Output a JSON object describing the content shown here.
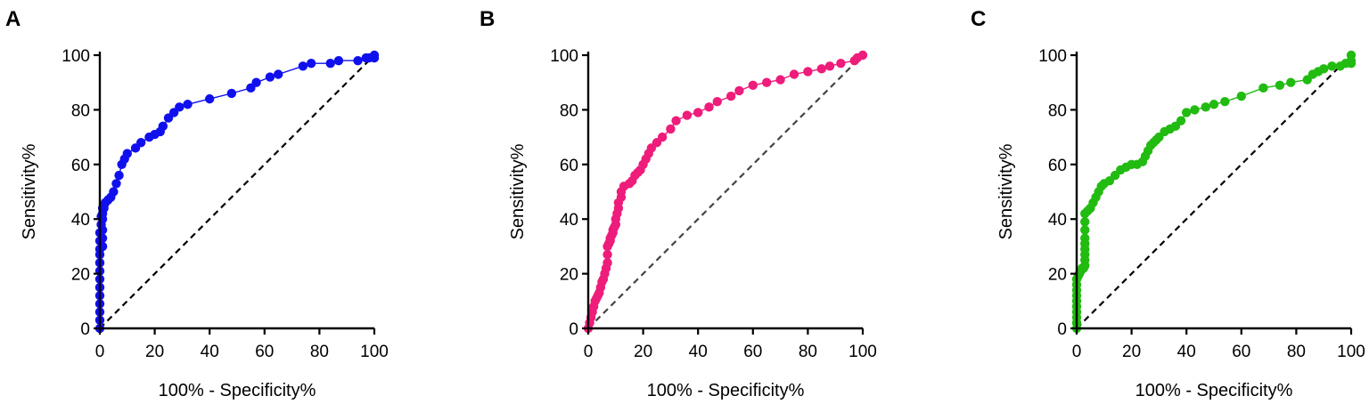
{
  "chart_data": [
    {
      "panel": "A",
      "type": "scatter",
      "xlabel": "100% - Specificity%",
      "ylabel": "Sensitivity%",
      "xlim": [
        0,
        100
      ],
      "ylim": [
        0,
        100
      ],
      "xticks": [
        "0",
        "20",
        "40",
        "60",
        "80",
        "100"
      ],
      "yticks": [
        "0",
        "20",
        "40",
        "60",
        "80",
        "100"
      ],
      "color": "#1010ee",
      "reference_line": [
        [
          0,
          0
        ],
        [
          100,
          100
        ]
      ],
      "x": [
        0,
        0,
        0,
        0,
        0,
        0,
        0,
        0,
        0,
        0,
        0,
        0,
        0,
        0.5,
        0.5,
        1,
        1,
        1,
        1,
        1,
        1,
        1.5,
        1.5,
        2,
        3,
        4,
        5,
        6,
        7,
        8,
        9,
        10,
        13,
        15,
        18,
        20,
        22,
        23,
        25,
        27,
        29,
        32,
        40,
        48,
        55,
        57,
        62,
        65,
        74,
        77,
        84,
        87,
        94,
        97,
        98,
        100,
        100
      ],
      "y": [
        0,
        3,
        6,
        9,
        12,
        15,
        18,
        21,
        24,
        27,
        29,
        32,
        35,
        38,
        41,
        44,
        30,
        33,
        36,
        40,
        42,
        44,
        45,
        46,
        47,
        48,
        50,
        53,
        56,
        60,
        62,
        64,
        66,
        68,
        70,
        71,
        72,
        74,
        77,
        79,
        81,
        82,
        84,
        86,
        88,
        90,
        92,
        93,
        96,
        97,
        97,
        98,
        98,
        99,
        99,
        99,
        100
      ]
    },
    {
      "panel": "B",
      "type": "scatter",
      "xlabel": "100% - Specificity%",
      "ylabel": "Sensitivity%",
      "xlim": [
        0,
        100
      ],
      "ylim": [
        0,
        100
      ],
      "xticks": [
        "0",
        "20",
        "40",
        "60",
        "80",
        "100"
      ],
      "yticks": [
        "0",
        "20",
        "40",
        "60",
        "80",
        "100"
      ],
      "color": "#ee1c7a",
      "reference_line": [
        [
          0,
          0
        ],
        [
          100,
          100
        ]
      ],
      "x": [
        0,
        0.5,
        1,
        1.5,
        2,
        2.5,
        3,
        3.5,
        4,
        4.5,
        5,
        5.5,
        6,
        6.5,
        7,
        7,
        7,
        7.5,
        8,
        8,
        8.5,
        9,
        9,
        9.5,
        10,
        10,
        10.5,
        11,
        11,
        12,
        12,
        13,
        15,
        16,
        17,
        18,
        19,
        20,
        21,
        22,
        23,
        25,
        27,
        30,
        32,
        36,
        40,
        44,
        47,
        52,
        55,
        60,
        65,
        70,
        75,
        80,
        85,
        88,
        92,
        97,
        98,
        100
      ],
      "y": [
        0,
        2,
        4,
        6,
        8,
        10,
        11,
        12,
        13,
        15,
        17,
        18,
        20,
        22,
        24,
        27,
        30,
        31,
        32,
        33,
        34,
        35,
        36,
        37,
        38,
        40,
        42,
        44,
        46,
        48,
        50,
        52,
        53,
        54,
        56,
        57,
        58,
        60,
        62,
        64,
        66,
        68,
        70,
        73,
        76,
        78,
        79,
        81,
        83,
        85,
        87,
        89,
        90,
        91,
        93,
        94,
        95,
        96,
        97,
        98,
        99,
        100
      ],
      "note_max_y": 100
    },
    {
      "panel": "C",
      "type": "scatter",
      "xlabel": "100% - Specificity%",
      "ylabel": "Sensitivity%",
      "xlim": [
        0,
        100
      ],
      "ylim": [
        0,
        100
      ],
      "xticks": [
        "0",
        "20",
        "40",
        "60",
        "80",
        "100"
      ],
      "yticks": [
        "0",
        "20",
        "40",
        "60",
        "80",
        "100"
      ],
      "color": "#22bb11",
      "reference_line": [
        [
          0,
          0
        ],
        [
          100,
          100
        ]
      ],
      "x": [
        0,
        0,
        0,
        0,
        0,
        0,
        0,
        0,
        0,
        0,
        0.5,
        1,
        1.5,
        2,
        2.5,
        3,
        3,
        3,
        3,
        3,
        3,
        3,
        3,
        3,
        4,
        5,
        6,
        7,
        8,
        9,
        10,
        12,
        14,
        16,
        18,
        20,
        22,
        24,
        25,
        26,
        27,
        28,
        29,
        30,
        32,
        34,
        36,
        38,
        40,
        43,
        47,
        50,
        54,
        60,
        68,
        74,
        78,
        84,
        86,
        88,
        90,
        93,
        96,
        98,
        100,
        100,
        100
      ],
      "y": [
        0,
        2,
        4,
        6,
        8,
        10,
        12,
        14,
        16,
        18,
        19,
        20,
        21,
        22,
        22,
        23,
        25,
        27,
        29,
        31,
        33,
        36,
        39,
        42,
        43,
        44,
        46,
        48,
        50,
        52,
        53,
        54,
        56,
        58,
        59,
        60,
        60,
        61,
        63,
        65,
        67,
        68,
        69,
        70,
        72,
        73,
        74,
        76,
        79,
        80,
        81,
        82,
        83,
        85,
        88,
        89,
        90,
        91,
        93,
        94,
        95,
        96,
        96,
        97,
        97,
        98,
        100
      ]
    }
  ]
}
